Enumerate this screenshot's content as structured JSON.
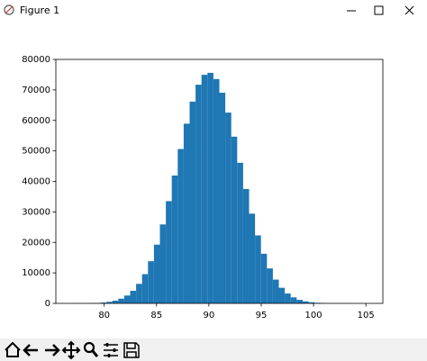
{
  "window": {
    "title": "Figure 1"
  },
  "chart_data": {
    "type": "histogram",
    "bins": [
      76.8,
      77.368,
      77.936,
      78.504,
      79.072,
      79.64,
      80.208,
      80.776,
      81.344,
      81.912,
      82.48,
      83.048,
      83.616,
      84.184,
      84.752,
      85.32,
      85.888,
      86.456,
      87.024,
      87.592,
      88.16,
      88.728,
      89.296,
      89.864,
      90.432,
      91.0,
      91.568,
      92.136,
      92.704,
      93.272,
      93.84,
      94.408,
      94.976,
      95.544,
      96.112,
      96.68,
      97.248,
      97.816,
      98.384,
      98.952,
      99.52,
      100.088,
      100.656,
      101.224,
      101.792,
      102.36,
      102.928,
      103.496,
      104.064,
      104.632,
      105.2
    ],
    "values": [
      7,
      16,
      34,
      70,
      140,
      269,
      500,
      893,
      1541,
      2573,
      4126,
      6404,
      9584,
      13830,
      19258,
      25889,
      33535,
      41938,
      50620,
      58917,
      66162,
      71703,
      74958,
      75600,
      73573,
      69076,
      62566,
      54670,
      46101,
      37517,
      29425,
      22286,
      16276,
      11469,
      7797,
      5117,
      3240,
      1976,
      1166,
      662,
      363,
      192,
      98,
      48,
      23,
      11,
      5,
      2,
      1,
      1
    ],
    "color": "#1f77b4",
    "xlim": [
      75.38,
      106.62
    ],
    "xticks": [
      80,
      85,
      90,
      95,
      100,
      105
    ],
    "ylim": [
      0,
      80000
    ],
    "yticks": [
      0,
      10000,
      20000,
      30000,
      40000,
      50000,
      60000,
      70000,
      80000
    ]
  }
}
